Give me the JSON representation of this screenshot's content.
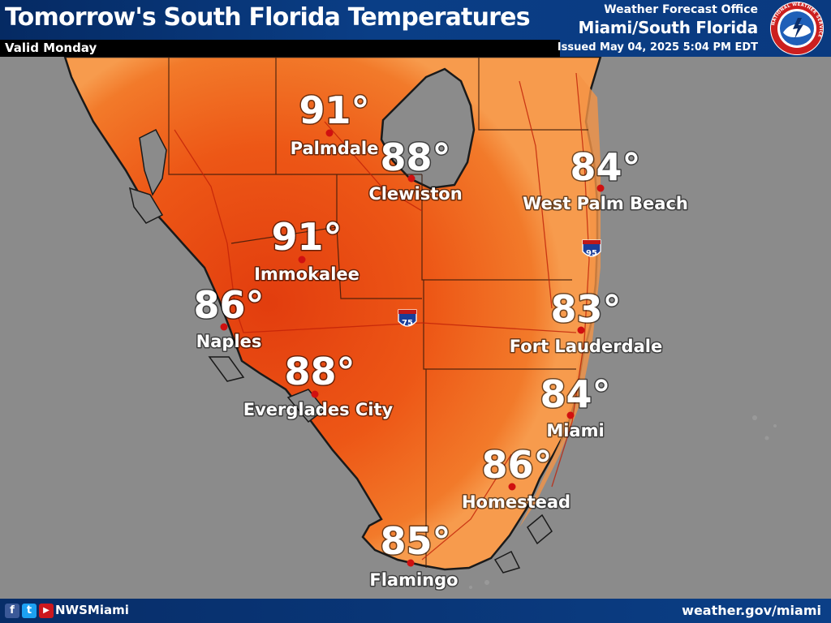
{
  "header": {
    "title": "Tomorrow's South Florida Temperatures",
    "valid": "Valid Monday",
    "office": "Weather Forecast Office",
    "region": "Miami/South Florida",
    "issued": "Issued May 04, 2025 5:04 PM EDT",
    "logo_text": "NATIONAL WEATHER SERVICE"
  },
  "colors": {
    "header_bg": "#0a3a80",
    "background_gray": "#8c8c8c",
    "temp_orange": "#f26a1c",
    "temp_hot": "#e3420f",
    "coast_light": "#f7a35a",
    "marker_red": "#d01010"
  },
  "highways": [
    {
      "label": "95",
      "icon": "interstate-shield-icon"
    },
    {
      "label": "75",
      "icon": "interstate-shield-icon"
    }
  ],
  "cities": [
    {
      "name": "Palmdale",
      "temp": "91°"
    },
    {
      "name": "Clewiston",
      "temp": "88°"
    },
    {
      "name": "West Palm Beach",
      "temp": "84°"
    },
    {
      "name": "Immokalee",
      "temp": "91°"
    },
    {
      "name": "Naples",
      "temp": "86°"
    },
    {
      "name": "Fort Lauderdale",
      "temp": "83°"
    },
    {
      "name": "Everglades City",
      "temp": "88°"
    },
    {
      "name": "Miami",
      "temp": "84°"
    },
    {
      "name": "Homestead",
      "temp": "86°"
    },
    {
      "name": "Flamingo",
      "temp": "85°"
    }
  ],
  "footer": {
    "social": [
      {
        "icon": "facebook-icon",
        "glyph": "f",
        "color": "#3b5998"
      },
      {
        "icon": "twitter-icon",
        "glyph": "t",
        "color": "#1da1f2"
      },
      {
        "icon": "youtube-icon",
        "glyph": "▶",
        "color": "#cc181e"
      }
    ],
    "handle": "NWSMiami",
    "website": "weather.gov/miami"
  }
}
